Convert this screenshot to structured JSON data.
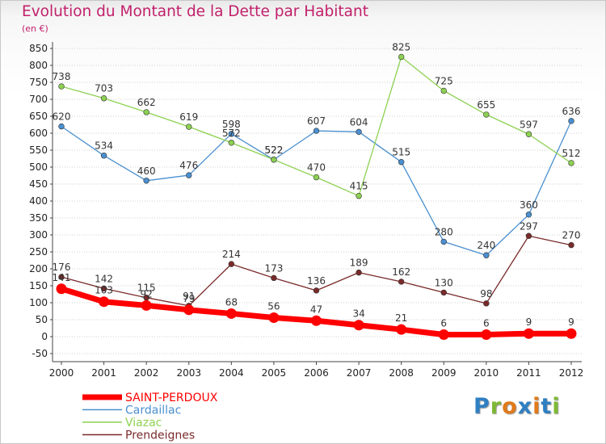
{
  "title": "Evolution du Montant de la Dette par Habitant",
  "subtitle": "(en €)",
  "logo": {
    "text": "Proxiti",
    "colors": [
      "#2f7fc3",
      "#7fb935",
      "#e07a1a",
      "#2f7fc3",
      "#e07a1a",
      "#2f7fc3",
      "#7fb935"
    ]
  },
  "chart_data": {
    "type": "line",
    "x": [
      "2000",
      "2001",
      "2002",
      "2003",
      "2004",
      "2005",
      "2006",
      "2007",
      "2008",
      "2009",
      "2010",
      "2011",
      "2012"
    ],
    "ylim": [
      -50,
      850
    ],
    "yticks": [
      -50,
      0,
      50,
      100,
      150,
      200,
      250,
      300,
      350,
      400,
      450,
      500,
      550,
      600,
      650,
      700,
      750,
      800,
      850
    ],
    "grid": "horizontal dotted",
    "legend_position": "bottom-left",
    "series": [
      {
        "name": "SAINT-PERDOUX",
        "color": "#ff0000",
        "thick": true,
        "values": [
          141,
          103,
          92,
          79,
          68,
          56,
          47,
          34,
          21,
          6,
          6,
          9,
          9
        ],
        "labels": [
          "141",
          "103",
          "92",
          "79",
          "68",
          "56",
          "47",
          "34",
          "21",
          "6",
          "6",
          "9",
          "9"
        ]
      },
      {
        "name": "Cardaillac",
        "color": "#4a8fd0",
        "thick": false,
        "values": [
          620,
          534,
          460,
          476,
          598,
          522,
          607,
          604,
          515,
          280,
          240,
          360,
          636
        ],
        "labels": [
          "620",
          "534",
          "460",
          "476",
          "598",
          "522",
          "607",
          "604",
          "515",
          "280",
          "240",
          "360",
          "636"
        ]
      },
      {
        "name": "Viazac",
        "color": "#8dd152",
        "thick": false,
        "values": [
          738,
          703,
          662,
          619,
          572,
          522,
          470,
          415,
          825,
          725,
          655,
          597,
          512
        ],
        "labels": [
          "738",
          "703",
          "662",
          "619",
          "572",
          "522",
          "470",
          "415",
          "825",
          "725",
          "655",
          "597",
          "512"
        ]
      },
      {
        "name": "Prendeignes",
        "color": "#7a2a2a",
        "thick": false,
        "values": [
          176,
          142,
          115,
          91,
          214,
          173,
          136,
          189,
          162,
          130,
          98,
          297,
          270
        ],
        "labels": [
          "176",
          "142",
          "115",
          "91",
          "214",
          "173",
          "136",
          "189",
          "162",
          "130",
          "98",
          "297",
          "270"
        ]
      }
    ]
  }
}
